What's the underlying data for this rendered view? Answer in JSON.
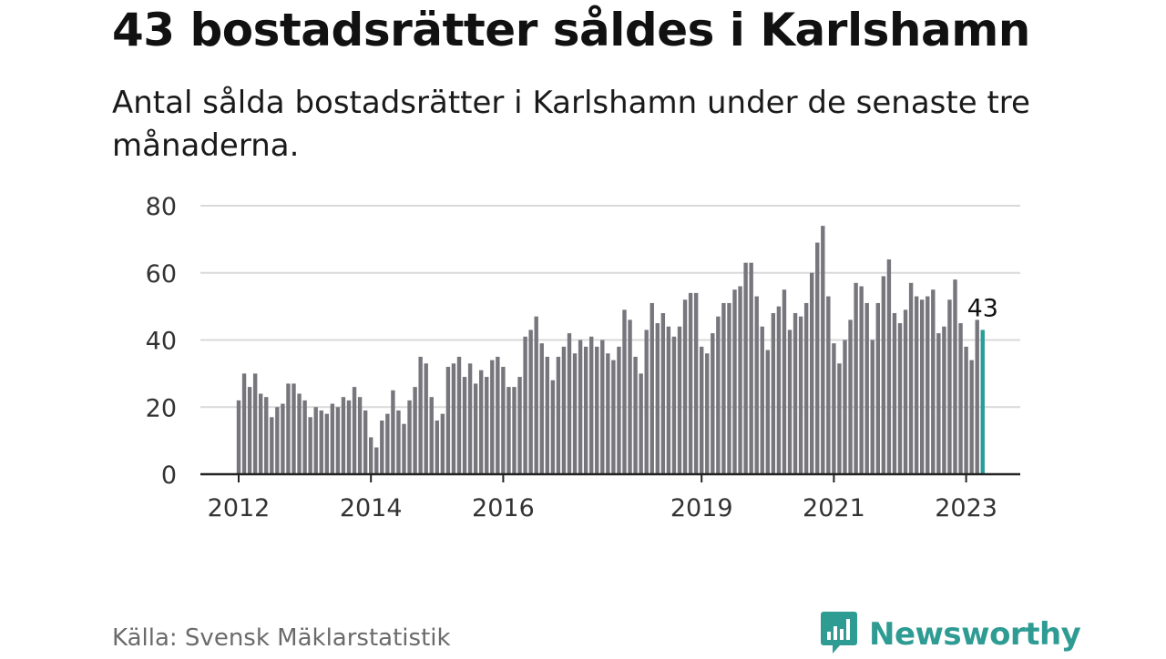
{
  "title": "43 bostadsrätter såldes i Karlshamn",
  "subtitle": "Antal sålda bostadsrätter i Karlshamn under de senaste tre månaderna.",
  "source": "Källa: Svensk Mäklarstatistik",
  "brand": {
    "name": "Newsworthy",
    "icon": "newsworthy-logo-icon"
  },
  "colors": {
    "bar": "#77767d",
    "highlight": "#2a9d96",
    "grid": "#d9d9d9",
    "axis": "#222222"
  },
  "chart_data": {
    "type": "bar",
    "x_start": "2012-01",
    "x_step": "month",
    "values": [
      22,
      30,
      26,
      30,
      24,
      23,
      17,
      20,
      21,
      27,
      27,
      24,
      22,
      17,
      20,
      19,
      18,
      21,
      20,
      23,
      22,
      26,
      23,
      19,
      11,
      8,
      16,
      18,
      25,
      19,
      15,
      22,
      26,
      35,
      33,
      23,
      16,
      18,
      32,
      33,
      35,
      29,
      33,
      27,
      31,
      29,
      34,
      35,
      32,
      26,
      26,
      29,
      41,
      43,
      47,
      39,
      35,
      28,
      35,
      38,
      42,
      36,
      40,
      38,
      41,
      38,
      40,
      36,
      34,
      38,
      49,
      46,
      35,
      30,
      43,
      51,
      45,
      48,
      44,
      41,
      44,
      52,
      54,
      54,
      38,
      36,
      42,
      47,
      51,
      51,
      55,
      56,
      63,
      63,
      53,
      44,
      37,
      48,
      50,
      55,
      43,
      48,
      47,
      51,
      60,
      69,
      74,
      53,
      39,
      33,
      40,
      46,
      57,
      56,
      51,
      40,
      51,
      59,
      64,
      48,
      45,
      49,
      57,
      53,
      52,
      53,
      55,
      42,
      44,
      52,
      58,
      45,
      38,
      34,
      46,
      43
    ],
    "highlight_last": true,
    "highlight_label": "43",
    "x_ticks": [
      "2012",
      "2014",
      "2016",
      "2019",
      "2021",
      "2023"
    ],
    "y_ticks": [
      "0",
      "20",
      "40",
      "60",
      "80"
    ],
    "ylim": [
      0,
      80
    ],
    "grid": true,
    "legend": "none"
  }
}
